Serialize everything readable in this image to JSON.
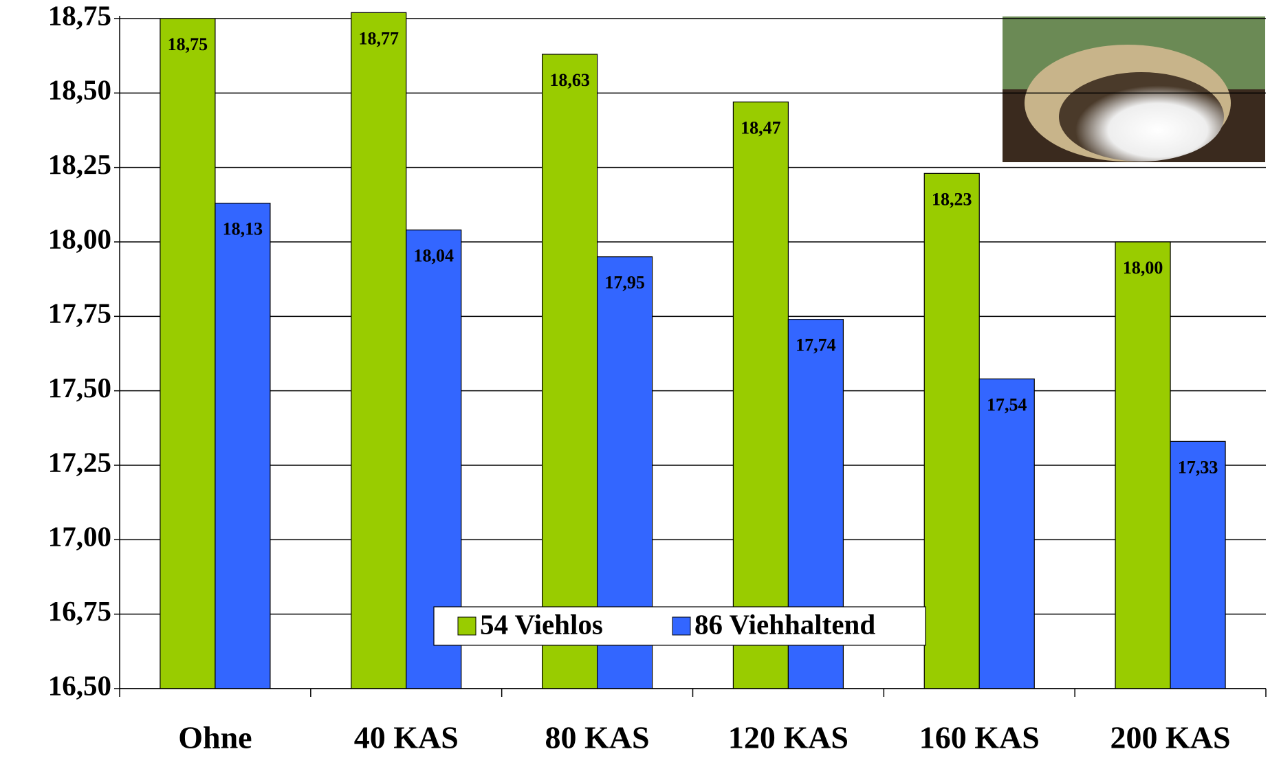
{
  "chart_data": {
    "type": "bar",
    "categories": [
      "Ohne",
      "40 KAS",
      "80 KAS",
      "120 KAS",
      "160 KAS",
      "200 KAS"
    ],
    "series": [
      {
        "name": "54 Viehlos",
        "color": "#99cc00",
        "values": [
          18.75,
          18.77,
          18.63,
          18.47,
          18.23,
          18.0
        ],
        "value_labels": [
          "18,75",
          "18,77",
          "18,63",
          "18,47",
          "18,23",
          "18,00"
        ]
      },
      {
        "name": "86 Viehhaltend",
        "color": "#3366ff",
        "values": [
          18.13,
          18.04,
          17.95,
          17.74,
          17.54,
          17.33
        ],
        "value_labels": [
          "18,13",
          "18,04",
          "17,95",
          "17,74",
          "17,54",
          "17,33"
        ]
      }
    ],
    "ylim": [
      16.5,
      18.75
    ],
    "yticks": [
      {
        "value": 16.5,
        "label": "16,50"
      },
      {
        "value": 16.75,
        "label": "16,75"
      },
      {
        "value": 17,
        "label": "17,00"
      },
      {
        "value": 17.25,
        "label": "17,25"
      },
      {
        "value": 17.5,
        "label": "17,50"
      },
      {
        "value": 17.75,
        "label": "17,75"
      },
      {
        "value": 18,
        "label": "18,00"
      },
      {
        "value": 18.25,
        "label": "18,25"
      },
      {
        "value": 18.5,
        "label": "18,50"
      },
      {
        "value": 18.75,
        "label": "18,75"
      }
    ],
    "grid": true,
    "legend": "bottom-center"
  }
}
